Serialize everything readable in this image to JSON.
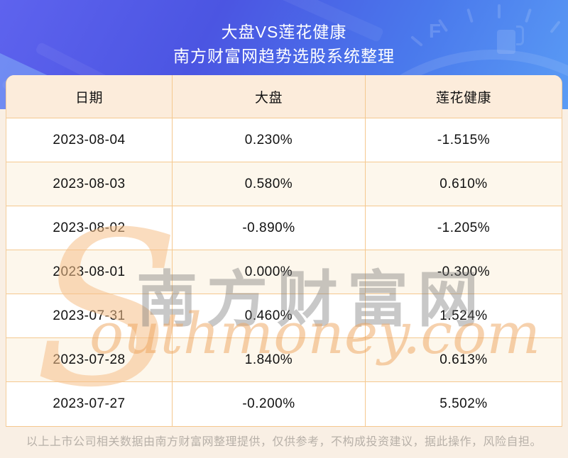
{
  "header": {
    "title": "大盘VS莲花健康",
    "subtitle": "南方财富网趋势选股系统整理",
    "gauge_label": "F"
  },
  "table": {
    "columns": [
      "日期",
      "大盘",
      "莲花健康"
    ],
    "rows": [
      [
        "2023-08-04",
        "0.230%",
        "-1.515%"
      ],
      [
        "2023-08-03",
        "0.580%",
        "0.610%"
      ],
      [
        "2023-08-02",
        "-0.890%",
        "-1.205%"
      ],
      [
        "2023-08-01",
        "0.000%",
        "-0.300%"
      ],
      [
        "2023-07-31",
        "0.460%",
        "1.524%"
      ],
      [
        "2023-07-28",
        "1.840%",
        "0.613%"
      ],
      [
        "2023-07-27",
        "-0.200%",
        "5.502%"
      ]
    ]
  },
  "watermark": {
    "swoosh": "S",
    "site_name_cn": "南方财富网",
    "site_name_en": "outhmoney.com"
  },
  "footer": {
    "disclaimer": "以上上市公司相关数据由南方财富网整理提供，仅供参考，不构成投资建议，据此操作，风险自担。"
  },
  "colors": {
    "hero_gradient_start": "#5e63ee",
    "hero_gradient_end": "#5a9cf5",
    "table_border": "#f5c88f",
    "table_header_bg": "#fcecdb",
    "table_alt_row_bg": "#fdf7ec",
    "watermark_orange": "#efa55e",
    "footer_text": "#b7b0a8",
    "page_bg": "#f9efe4"
  }
}
